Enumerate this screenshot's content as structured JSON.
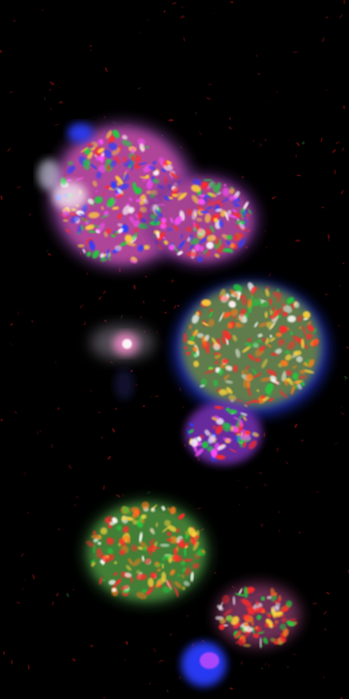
{
  "image": {
    "description_kind": "multichannel-fluorescence-micrograph",
    "background_color": "#000000",
    "channel_colors": [
      "#ff2a2a",
      "#1fd33a",
      "#2a3cff",
      "#ffffff",
      "#ff50ff",
      "#ffd23a"
    ],
    "object_count": 6,
    "objects": [
      {
        "name": "upper-left-cell",
        "hue": "mixed"
      },
      {
        "name": "upper-right-lobe",
        "hue": "mixed"
      },
      {
        "name": "small-dim-cell",
        "hue": "white-pink"
      },
      {
        "name": "middle-right-cell",
        "hue": "green-yellow-red"
      },
      {
        "name": "lower-left-cell",
        "hue": "green-red-white"
      },
      {
        "name": "bottom-right-cluster",
        "hue": "red-blue"
      }
    ]
  }
}
